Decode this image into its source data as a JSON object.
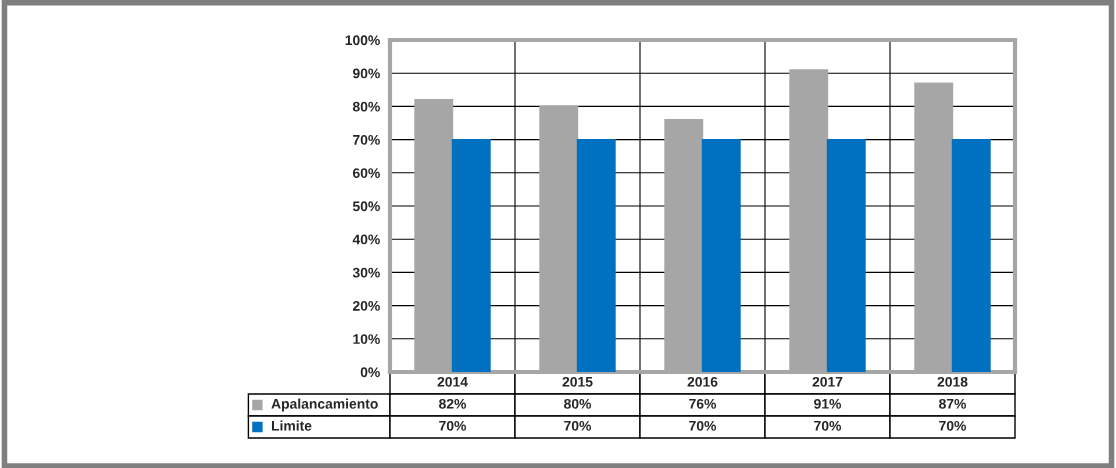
{
  "chart_data": {
    "type": "bar",
    "categories": [
      "2014",
      "2015",
      "2016",
      "2017",
      "2018"
    ],
    "series": [
      {
        "name": "Apalancamiento",
        "color": "#a6a6a6",
        "values": [
          82,
          80,
          76,
          91,
          87
        ],
        "value_labels": [
          "82%",
          "80%",
          "76%",
          "91%",
          "87%"
        ]
      },
      {
        "name": "Limite",
        "color": "#0070c0",
        "values": [
          70,
          70,
          70,
          70,
          70
        ],
        "value_labels": [
          "70%",
          "70%",
          "70%",
          "70%",
          "70%"
        ]
      }
    ],
    "ylim": [
      0,
      100
    ],
    "yticks": [
      {
        "value": 0,
        "label": "0%"
      },
      {
        "value": 10,
        "label": "10%"
      },
      {
        "value": 20,
        "label": "20%"
      },
      {
        "value": 30,
        "label": "30%"
      },
      {
        "value": 40,
        "label": "40%"
      },
      {
        "value": 50,
        "label": "50%"
      },
      {
        "value": 60,
        "label": "60%"
      },
      {
        "value": 70,
        "label": "70%"
      },
      {
        "value": 80,
        "label": "80%"
      },
      {
        "value": 90,
        "label": "90%"
      },
      {
        "value": 100,
        "label": "100%"
      }
    ],
    "grid": "y",
    "legend": "bottom left"
  }
}
